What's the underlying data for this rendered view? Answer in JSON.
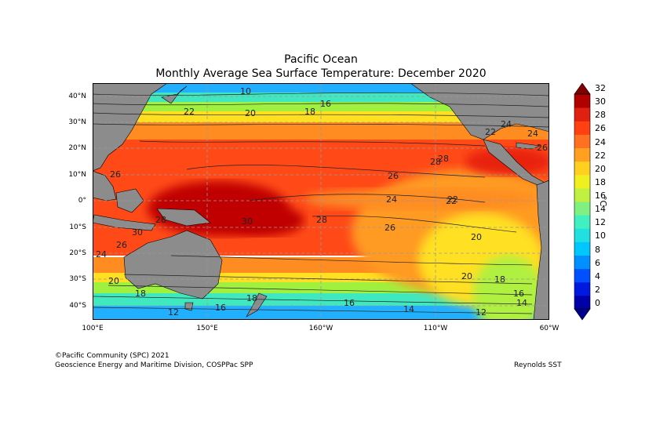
{
  "title": "Pacific Ocean",
  "subtitle": "Monthly Average Sea Surface Temperature: December 2020",
  "lat_labels": [
    "40°N",
    "30°N",
    "20°N",
    "10°N",
    "0°",
    "10°S",
    "20°S",
    "30°S",
    "40°S"
  ],
  "lon_labels": [
    "100°E",
    "150°E",
    "160°W",
    "110°W",
    "60°W"
  ],
  "colorbar": {
    "ticks": [
      "32",
      "30",
      "28",
      "26",
      "24",
      "22",
      "20",
      "18",
      "16",
      "14",
      "12",
      "10",
      "8",
      "6",
      "4",
      "2",
      "0"
    ],
    "unit": "°C",
    "colors": [
      "#0000a8",
      "#0018e0",
      "#0050ff",
      "#0090ff",
      "#00c8ff",
      "#20e0e0",
      "#40f0c0",
      "#80f080",
      "#c0f040",
      "#f0f020",
      "#ffd020",
      "#ffa020",
      "#ff7020",
      "#ff4010",
      "#e02010",
      "#b00000"
    ]
  },
  "contour_labels": [
    "26",
    "28",
    "30",
    "28",
    "26",
    "24",
    "22",
    "20",
    "18",
    "16",
    "14",
    "12",
    "10",
    "16",
    "18",
    "20",
    "22",
    "24",
    "26",
    "28",
    "30",
    "26",
    "24",
    "22",
    "20",
    "18",
    "16",
    "14",
    "12",
    "16",
    "18",
    "20",
    "22",
    "24",
    "26",
    "28"
  ],
  "colors": {
    "land": "#8c8c8c",
    "grid": "#999999",
    "warm_pool": "#c00000",
    "red": "#ff3a10",
    "orange": "#ff8c20",
    "yellow": "#ffe020",
    "green": "#a0f040",
    "cyan": "#40e8c0",
    "blue": "#20b0ff"
  },
  "footer": {
    "copyright": "©Pacific Community (SPC) 2021",
    "division": "Geoscience Energy and Maritime Division, COSPPac SPP",
    "source": "Reynolds SST"
  }
}
